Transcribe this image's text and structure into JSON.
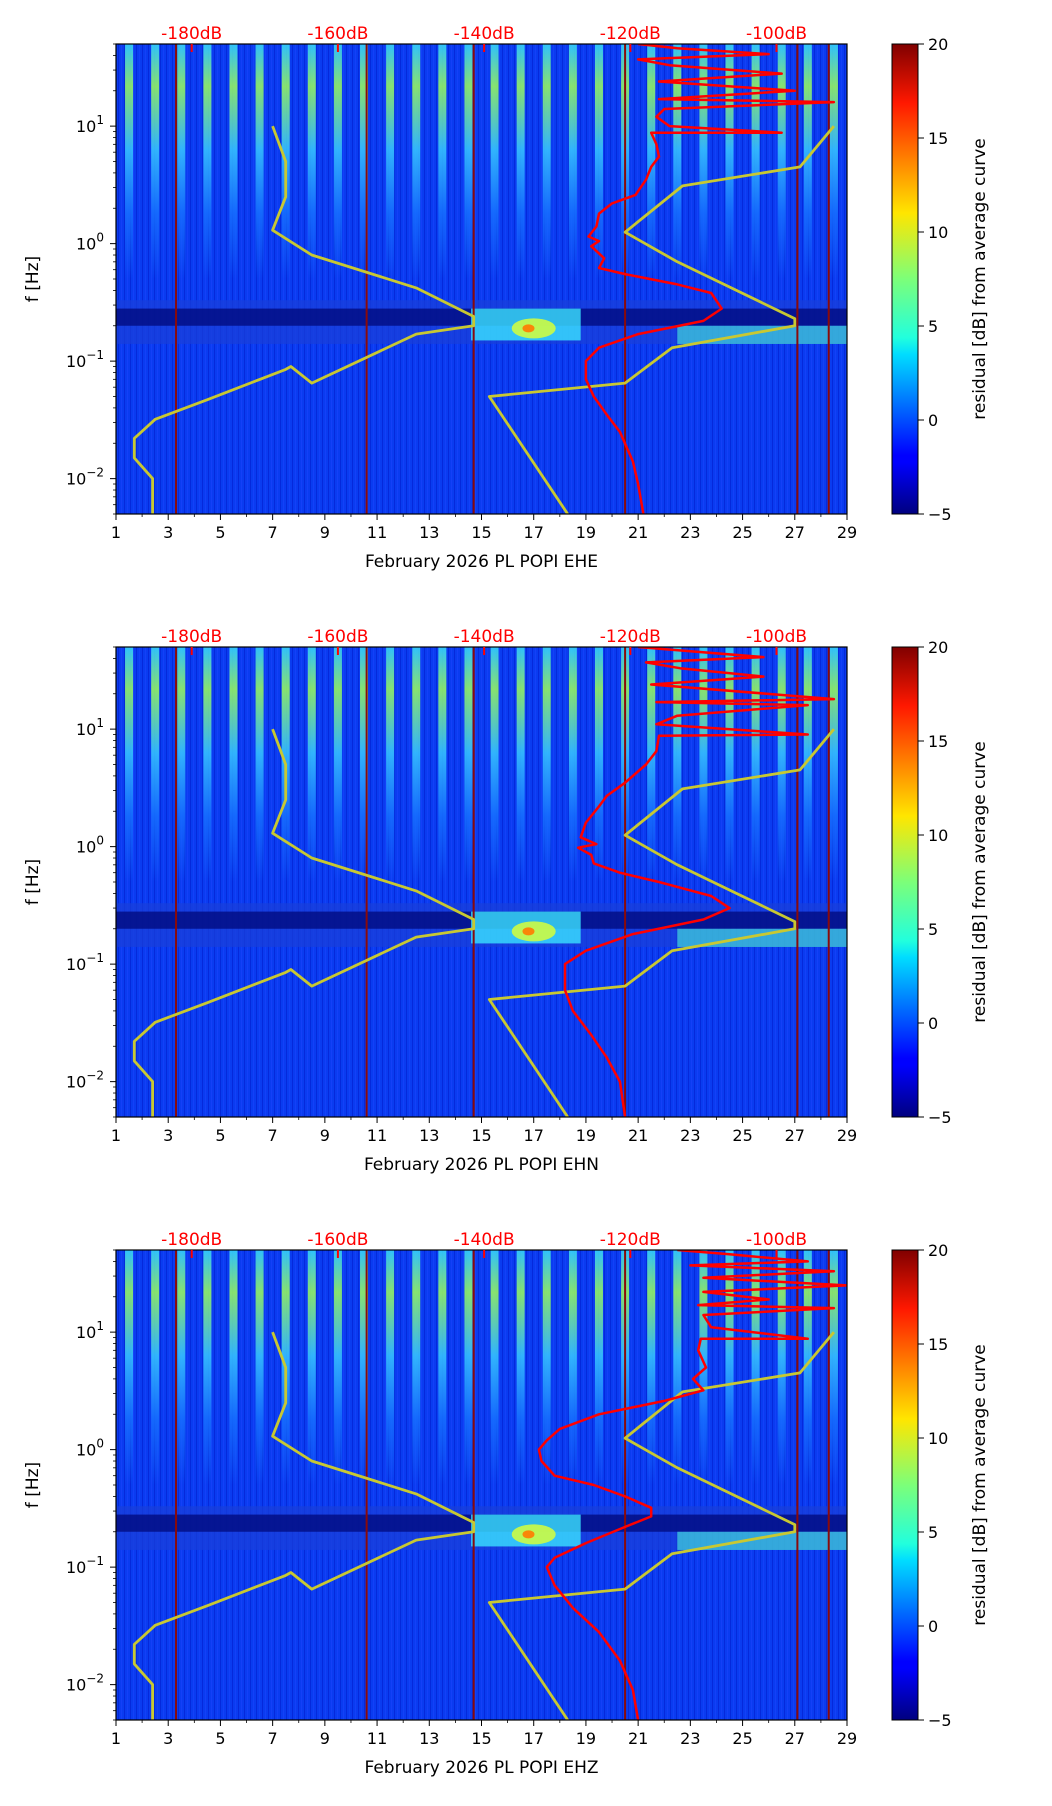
{
  "chart_data": [
    {
      "type": "heatmap",
      "title": "",
      "xlabel": "February 2026 PL POPI  EHE",
      "ylabel": "f [Hz]",
      "x_ticks": [
        "1",
        "3",
        "5",
        "7",
        "9",
        "11",
        "13",
        "15",
        "17",
        "19",
        "21",
        "23",
        "25",
        "27",
        "29"
      ],
      "x_range": [
        1,
        29
      ],
      "y_range_hz": [
        0.005,
        50
      ],
      "y_ticks": [
        {
          "value": 0.01,
          "base": "10",
          "exp": "−2"
        },
        {
          "value": 0.1,
          "base": "10",
          "exp": "−1"
        },
        {
          "value": 1,
          "base": "10",
          "exp": "0"
        },
        {
          "value": 10,
          "base": "10",
          "exp": "1"
        }
      ],
      "top_db_labels": [
        {
          "text": "-180dB",
          "x": 3.9
        },
        {
          "text": "-160dB",
          "x": 9.5
        },
        {
          "text": "-140dB",
          "x": 15.1
        },
        {
          "text": "-120dB",
          "x": 20.7
        },
        {
          "text": "-100dB",
          "x": 26.3
        }
      ],
      "colorbar": {
        "label": "residual [dB] from average curve",
        "min": -5,
        "max": 20,
        "ticks": [
          "−5",
          "0",
          "5",
          "10",
          "15",
          "20"
        ]
      },
      "dark_red_vertical_lines_day": [
        3.3,
        10.6,
        14.7,
        20.5,
        27.1,
        28.3
      ],
      "series": [
        {
          "name": "NLNM/NHNM model curve",
          "color": "#c8c832",
          "points": [
            [
              7,
              10
            ],
            [
              7.5,
              5
            ],
            [
              7.5,
              2.5
            ],
            [
              7,
              1.3
            ],
            [
              8.5,
              0.8
            ],
            [
              12.5,
              0.42
            ],
            [
              14.7,
              0.24
            ],
            [
              14.7,
              0.2
            ],
            [
              12.5,
              0.17
            ],
            [
              8.5,
              0.065
            ],
            [
              7.7,
              0.09
            ],
            [
              7.5,
              0.085
            ],
            [
              4.5,
              0.047
            ],
            [
              2.5,
              0.032
            ],
            [
              1.7,
              0.022
            ],
            [
              1.7,
              0.015
            ],
            [
              2.4,
              0.01
            ],
            [
              2.4,
              0.005
            ]
          ]
        },
        {
          "name": "NLNM/NHNM model curve 2",
          "color": "#c8c832",
          "points": [
            [
              28.5,
              10
            ],
            [
              27.2,
              4.5
            ],
            [
              22.7,
              3.1
            ],
            [
              20.5,
              1.25
            ],
            [
              22.5,
              0.7
            ],
            [
              27,
              0.23
            ],
            [
              27,
              0.2
            ],
            [
              22.3,
              0.13
            ],
            [
              20.5,
              0.065
            ],
            [
              15.3,
              0.05
            ],
            [
              18.3,
              0.005
            ]
          ]
        },
        {
          "name": "median PSD",
          "color": "#ff0000",
          "points": [
            [
              21,
              50
            ],
            [
              22.5,
              46
            ],
            [
              26,
              41
            ],
            [
              21,
              37
            ],
            [
              22.2,
              33
            ],
            [
              26.5,
              28
            ],
            [
              21.8,
              24
            ],
            [
              27,
              20
            ],
            [
              21.8,
              17
            ],
            [
              28.5,
              16
            ],
            [
              22,
              14
            ],
            [
              21.7,
              12
            ],
            [
              22.2,
              10
            ],
            [
              26.5,
              8.8
            ],
            [
              21.5,
              8.8
            ],
            [
              21.7,
              7
            ],
            [
              21.8,
              5.5
            ],
            [
              21.5,
              4.5
            ],
            [
              21.3,
              3.5
            ],
            [
              20.9,
              2.6
            ],
            [
              20,
              2.2
            ],
            [
              19.5,
              1.8
            ],
            [
              19.4,
              1.4
            ],
            [
              19.1,
              1.15
            ],
            [
              19.5,
              1.05
            ],
            [
              19.2,
              0.95
            ],
            [
              19.7,
              0.75
            ],
            [
              19.5,
              0.62
            ],
            [
              20.5,
              0.55
            ],
            [
              22.5,
              0.45
            ],
            [
              23.8,
              0.38
            ],
            [
              24.2,
              0.28
            ],
            [
              23.5,
              0.22
            ],
            [
              21,
              0.17
            ],
            [
              19.5,
              0.13
            ],
            [
              19,
              0.1
            ],
            [
              19,
              0.07
            ],
            [
              19.3,
              0.05
            ],
            [
              19.8,
              0.035
            ],
            [
              20.3,
              0.025
            ],
            [
              20.8,
              0.014
            ],
            [
              21,
              0.009
            ],
            [
              21.2,
              0.005
            ]
          ]
        }
      ]
    },
    {
      "type": "heatmap",
      "title": "",
      "xlabel": "February 2026 PL POPI  EHN",
      "ylabel": "f [Hz]",
      "x_ticks": [
        "1",
        "3",
        "5",
        "7",
        "9",
        "11",
        "13",
        "15",
        "17",
        "19",
        "21",
        "23",
        "25",
        "27",
        "29"
      ],
      "x_range": [
        1,
        29
      ],
      "y_range_hz": [
        0.005,
        50
      ],
      "y_ticks": [
        {
          "value": 0.01,
          "base": "10",
          "exp": "−2"
        },
        {
          "value": 0.1,
          "base": "10",
          "exp": "−1"
        },
        {
          "value": 1,
          "base": "10",
          "exp": "0"
        },
        {
          "value": 10,
          "base": "10",
          "exp": "1"
        }
      ],
      "top_db_labels": [
        {
          "text": "-180dB",
          "x": 3.9
        },
        {
          "text": "-160dB",
          "x": 9.5
        },
        {
          "text": "-140dB",
          "x": 15.1
        },
        {
          "text": "-120dB",
          "x": 20.7
        },
        {
          "text": "-100dB",
          "x": 26.3
        }
      ],
      "colorbar": {
        "label": "residual [dB] from average curve",
        "min": -5,
        "max": 20,
        "ticks": [
          "−5",
          "0",
          "5",
          "10",
          "15",
          "20"
        ]
      },
      "dark_red_vertical_lines_day": [
        3.3,
        10.6,
        14.7,
        20.5,
        27.1,
        28.3
      ],
      "series": [
        {
          "name": "NLNM/NHNM model curve",
          "color": "#c8c832",
          "points": [
            [
              7,
              10
            ],
            [
              7.5,
              5
            ],
            [
              7.5,
              2.5
            ],
            [
              7,
              1.3
            ],
            [
              8.5,
              0.8
            ],
            [
              12.5,
              0.42
            ],
            [
              14.7,
              0.24
            ],
            [
              14.7,
              0.2
            ],
            [
              12.5,
              0.17
            ],
            [
              8.5,
              0.065
            ],
            [
              7.7,
              0.09
            ],
            [
              7.5,
              0.085
            ],
            [
              4.5,
              0.047
            ],
            [
              2.5,
              0.032
            ],
            [
              1.7,
              0.022
            ],
            [
              1.7,
              0.015
            ],
            [
              2.4,
              0.01
            ],
            [
              2.4,
              0.005
            ]
          ]
        },
        {
          "name": "NLNM/NHNM model curve 2",
          "color": "#c8c832",
          "points": [
            [
              28.5,
              10
            ],
            [
              27.2,
              4.5
            ],
            [
              22.7,
              3.1
            ],
            [
              20.5,
              1.25
            ],
            [
              22.5,
              0.7
            ],
            [
              27,
              0.23
            ],
            [
              27,
              0.2
            ],
            [
              22.3,
              0.13
            ],
            [
              20.5,
              0.065
            ],
            [
              15.3,
              0.05
            ],
            [
              18.3,
              0.005
            ]
          ]
        },
        {
          "name": "median PSD",
          "color": "#ff0000",
          "points": [
            [
              21,
              50
            ],
            [
              23,
              46
            ],
            [
              25.8,
              41
            ],
            [
              21.3,
              37
            ],
            [
              22.6,
              33
            ],
            [
              25.8,
              28
            ],
            [
              21.5,
              24
            ],
            [
              28.5,
              18
            ],
            [
              21.7,
              17
            ],
            [
              27.5,
              16
            ],
            [
              22.5,
              13
            ],
            [
              21.7,
              11
            ],
            [
              27.5,
              9
            ],
            [
              21.8,
              8.8
            ],
            [
              21.7,
              6.5
            ],
            [
              21.3,
              5
            ],
            [
              20.5,
              3.5
            ],
            [
              19.8,
              2.7
            ],
            [
              19.5,
              2.2
            ],
            [
              19,
              1.6
            ],
            [
              18.8,
              1.2
            ],
            [
              19.4,
              1.05
            ],
            [
              18.7,
              0.98
            ],
            [
              19.2,
              0.85
            ],
            [
              19.3,
              0.72
            ],
            [
              20.3,
              0.6
            ],
            [
              21.8,
              0.5
            ],
            [
              23.8,
              0.38
            ],
            [
              24.5,
              0.3
            ],
            [
              23.5,
              0.24
            ],
            [
              20.8,
              0.18
            ],
            [
              19,
              0.13
            ],
            [
              18.2,
              0.1
            ],
            [
              18.2,
              0.06
            ],
            [
              18.5,
              0.04
            ],
            [
              19.2,
              0.025
            ],
            [
              19.8,
              0.016
            ],
            [
              20.3,
              0.01
            ],
            [
              20.5,
              0.005
            ]
          ]
        }
      ]
    },
    {
      "type": "heatmap",
      "title": "",
      "xlabel": "February 2026 PL POPI  EHZ",
      "ylabel": "f [Hz]",
      "x_ticks": [
        "1",
        "3",
        "5",
        "7",
        "9",
        "11",
        "13",
        "15",
        "17",
        "19",
        "21",
        "23",
        "25",
        "27",
        "29"
      ],
      "x_range": [
        1,
        29
      ],
      "y_range_hz": [
        0.005,
        50
      ],
      "y_ticks": [
        {
          "value": 0.01,
          "base": "10",
          "exp": "−2"
        },
        {
          "value": 0.1,
          "base": "10",
          "exp": "−1"
        },
        {
          "value": 1,
          "base": "10",
          "exp": "0"
        },
        {
          "value": 10,
          "base": "10",
          "exp": "1"
        }
      ],
      "top_db_labels": [
        {
          "text": "-180dB",
          "x": 3.9
        },
        {
          "text": "-160dB",
          "x": 9.5
        },
        {
          "text": "-140dB",
          "x": 15.1
        },
        {
          "text": "-120dB",
          "x": 20.7
        },
        {
          "text": "-100dB",
          "x": 26.3
        }
      ],
      "colorbar": {
        "label": "residual [dB] from average curve",
        "min": -5,
        "max": 20,
        "ticks": [
          "−5",
          "0",
          "5",
          "10",
          "15",
          "20"
        ]
      },
      "dark_red_vertical_lines_day": [
        3.3,
        10.6,
        14.7,
        20.5,
        27.1,
        28.3
      ],
      "series": [
        {
          "name": "NLNM/NHNM model curve",
          "color": "#c8c832",
          "points": [
            [
              7,
              10
            ],
            [
              7.5,
              5
            ],
            [
              7.5,
              2.5
            ],
            [
              7,
              1.3
            ],
            [
              8.5,
              0.8
            ],
            [
              12.5,
              0.42
            ],
            [
              14.7,
              0.24
            ],
            [
              14.7,
              0.2
            ],
            [
              12.5,
              0.17
            ],
            [
              8.5,
              0.065
            ],
            [
              7.7,
              0.09
            ],
            [
              7.5,
              0.085
            ],
            [
              4.5,
              0.047
            ],
            [
              2.5,
              0.032
            ],
            [
              1.7,
              0.022
            ],
            [
              1.7,
              0.015
            ],
            [
              2.4,
              0.01
            ],
            [
              2.4,
              0.005
            ]
          ]
        },
        {
          "name": "NLNM/NHNM model curve 2",
          "color": "#c8c832",
          "points": [
            [
              28.5,
              10
            ],
            [
              27.2,
              4.5
            ],
            [
              22.7,
              3.1
            ],
            [
              20.5,
              1.25
            ],
            [
              22.5,
              0.7
            ],
            [
              27,
              0.23
            ],
            [
              27,
              0.2
            ],
            [
              22.3,
              0.13
            ],
            [
              20.5,
              0.065
            ],
            [
              15.3,
              0.05
            ],
            [
              18.3,
              0.005
            ]
          ]
        },
        {
          "name": "median PSD",
          "color": "#ff0000",
          "points": [
            [
              22.5,
              50
            ],
            [
              24.5,
              46
            ],
            [
              27.5,
              40
            ],
            [
              23,
              37
            ],
            [
              28.5,
              33
            ],
            [
              23.5,
              29
            ],
            [
              29,
              25
            ],
            [
              23.5,
              22
            ],
            [
              26,
              19
            ],
            [
              23.3,
              17
            ],
            [
              28.5,
              16
            ],
            [
              23.5,
              14
            ],
            [
              23.8,
              11
            ],
            [
              27.5,
              8.8
            ],
            [
              23.4,
              8.8
            ],
            [
              23.3,
              7
            ],
            [
              23.6,
              5
            ],
            [
              23.1,
              4
            ],
            [
              23.5,
              3.2
            ],
            [
              22,
              2.6
            ],
            [
              19.5,
              2
            ],
            [
              18,
              1.5
            ],
            [
              17.5,
              1.2
            ],
            [
              17.2,
              1
            ],
            [
              17.3,
              0.8
            ],
            [
              17.8,
              0.6
            ],
            [
              19.3,
              0.5
            ],
            [
              20.5,
              0.4
            ],
            [
              21.5,
              0.32
            ],
            [
              21.5,
              0.27
            ],
            [
              20.5,
              0.22
            ],
            [
              19,
              0.16
            ],
            [
              17.8,
              0.12
            ],
            [
              17.5,
              0.1
            ],
            [
              17.8,
              0.07
            ],
            [
              18.5,
              0.045
            ],
            [
              19.5,
              0.028
            ],
            [
              20.3,
              0.016
            ],
            [
              20.8,
              0.009
            ],
            [
              21,
              0.005
            ]
          ]
        }
      ]
    }
  ]
}
